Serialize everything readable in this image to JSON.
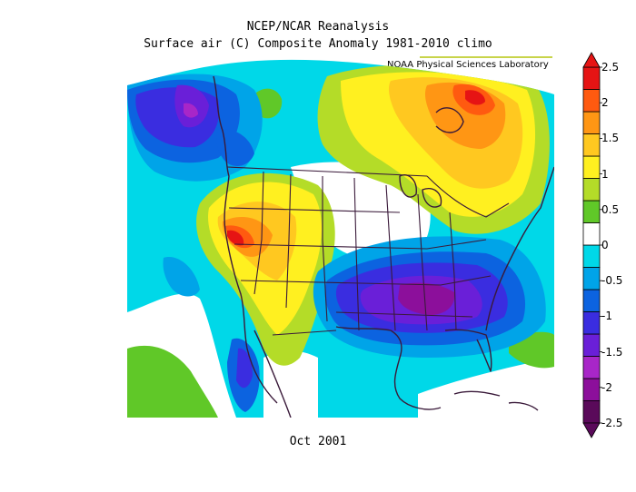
{
  "header": {
    "title_line1": "NCEP/NCAR Reanalysis",
    "title_line2": "Surface air (C) Composite Anomaly 1981-2010 climo",
    "credit": "NOAA Physical Sciences Laboratory"
  },
  "footer": {
    "date": "Oct 2001"
  },
  "map": {
    "region": "North America",
    "projection": "Lambert conformal"
  },
  "colorbar": {
    "colors": [
      "#5a0a5a",
      "#8c0f9b",
      "#a826c8",
      "#6a1fd8",
      "#3a2de0",
      "#0c63e0",
      "#00a4e8",
      "#00d8e8",
      "#ffffff",
      "#60c828",
      "#b4dc28",
      "#fff020",
      "#ffc820",
      "#ff9614",
      "#ff5a10",
      "#e61414"
    ],
    "tick_labels": [
      "-2.5",
      "-2",
      "-1.5",
      "-1",
      "-0.5",
      "0",
      "0.5",
      "1",
      "1.5",
      "2",
      "2.5"
    ]
  }
}
